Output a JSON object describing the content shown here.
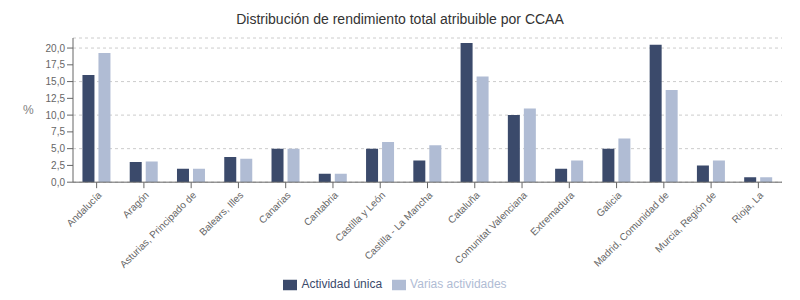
{
  "chart_data": {
    "type": "bar",
    "title": "Distribución de rendimiento total atribuible por CCAA",
    "ylabel": "%",
    "categories": [
      "Andalucía",
      "Aragón",
      "Asturias, Principado de",
      "Balears, Illes",
      "Canarias",
      "Cantabria",
      "Castilla y León",
      "Castilla - La Mancha",
      "Cataluña",
      "Comunitat Valenciana",
      "Extremadura",
      "Galicia",
      "Madrid, Comunidad de",
      "Murcia, Región de",
      "Rioja, La"
    ],
    "series": [
      {
        "name": "Actividad única",
        "color": "#3b4a6b",
        "values": [
          16.0,
          3.0,
          2.0,
          3.75,
          5.0,
          1.25,
          5.0,
          3.25,
          20.75,
          10.0,
          2.0,
          5.0,
          20.5,
          2.5,
          0.75
        ]
      },
      {
        "name": "Varias actividades",
        "color": "#b0bcd4",
        "values": [
          19.25,
          3.1,
          2.0,
          3.5,
          5.0,
          1.25,
          6.0,
          5.5,
          15.75,
          11.0,
          3.25,
          6.5,
          13.75,
          3.25,
          0.75
        ]
      }
    ],
    "ylim": [
      0,
      21.5
    ],
    "yticks": [
      {
        "value": 0.0,
        "label": "0,0"
      },
      {
        "value": 2.5,
        "label": "2,5"
      },
      {
        "value": 5.0,
        "label": "5,0"
      },
      {
        "value": 7.5,
        "label": "7,5"
      },
      {
        "value": 10.0,
        "label": "10,0"
      },
      {
        "value": 12.5,
        "label": "12,5"
      },
      {
        "value": 15.0,
        "label": "15,0"
      },
      {
        "value": 17.5,
        "label": "17,5"
      },
      {
        "value": 20.0,
        "label": "20,0"
      }
    ],
    "grid": true,
    "legend": "bottom"
  }
}
